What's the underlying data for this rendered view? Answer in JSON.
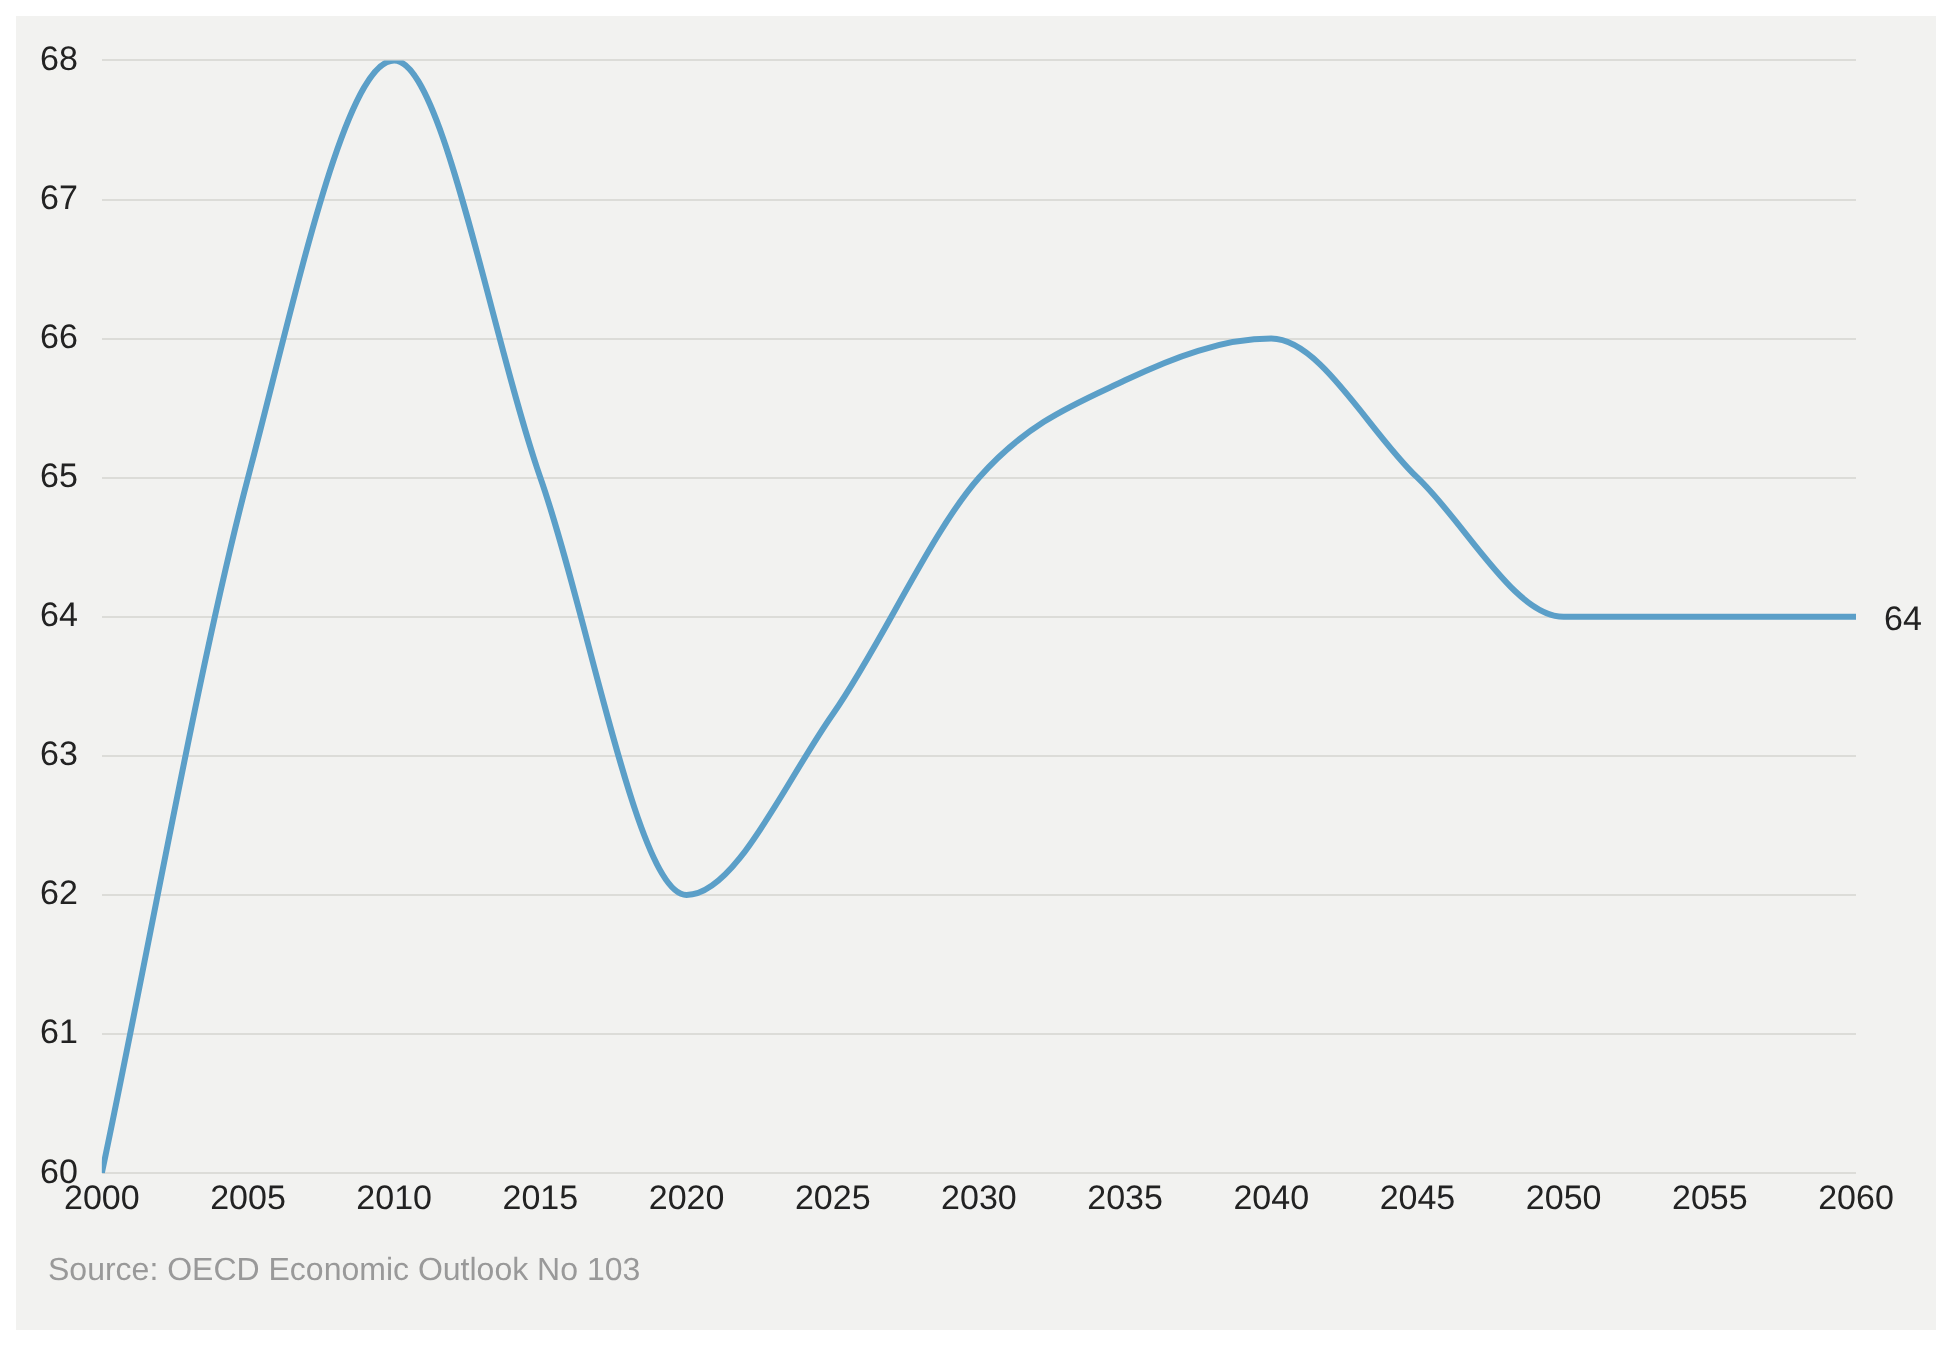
{
  "chart_data": {
    "type": "line",
    "x": [
      2000,
      2005,
      2010,
      2015,
      2020,
      2025,
      2030,
      2035,
      2040,
      2045,
      2050,
      2055,
      2060
    ],
    "series": [
      {
        "color": "#5b9fc8",
        "values": [
          60,
          65,
          68,
          65,
          62,
          63.3,
          65,
          65.7,
          66,
          65,
          64,
          64,
          64
        ]
      }
    ],
    "xlim": [
      2000,
      2060
    ],
    "xticks": [
      2000,
      2005,
      2010,
      2015,
      2020,
      2025,
      2030,
      2035,
      2040,
      2045,
      2050,
      2055,
      2060
    ],
    "ylim": [
      60,
      68
    ],
    "yticks": [
      60,
      61,
      62,
      63,
      64,
      65,
      66,
      67,
      68
    ],
    "grid": "y",
    "legend": false,
    "marker": "none",
    "line_style": "solid",
    "annotations": [
      "Source: OECD Economic Outlook No 103",
      {
        "text": "64",
        "x": 2060,
        "y": 64
      }
    ]
  }
}
